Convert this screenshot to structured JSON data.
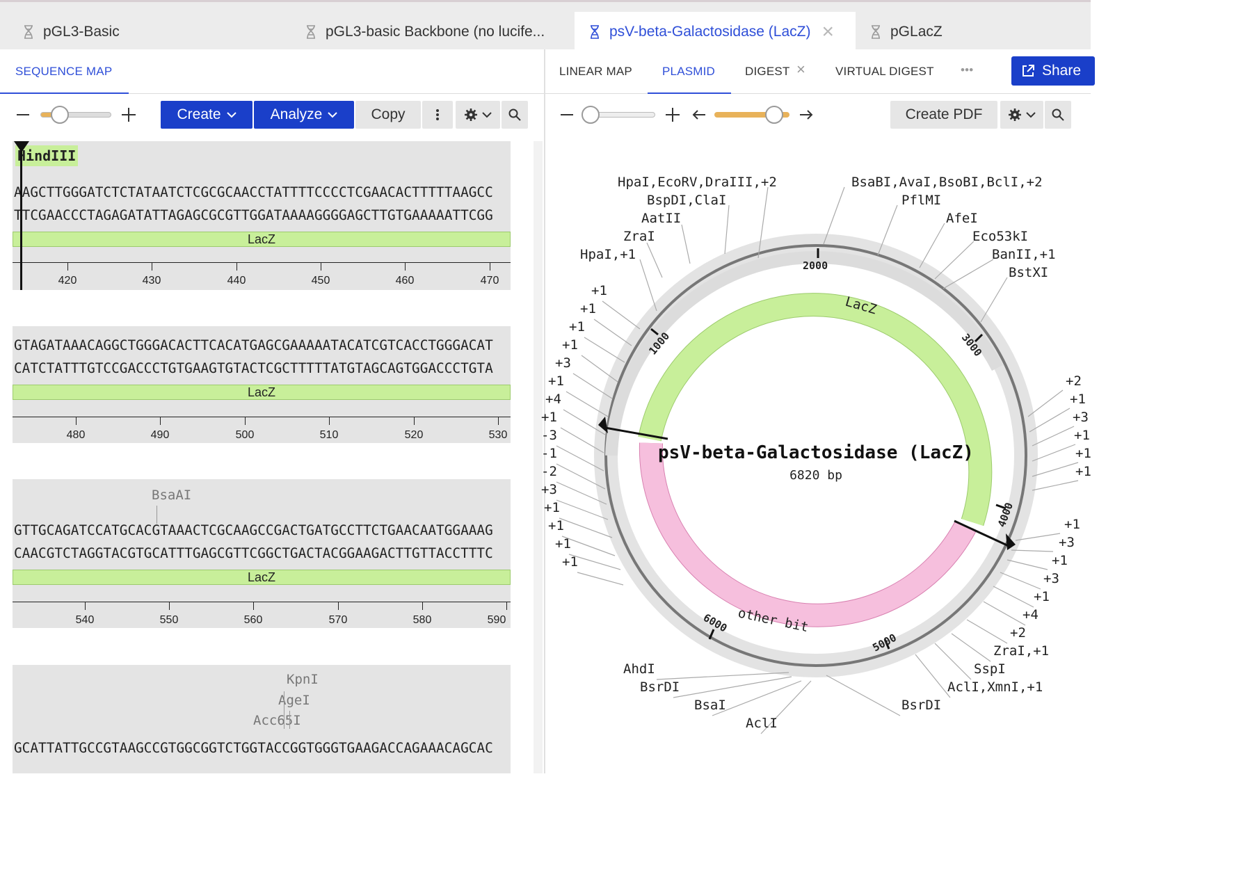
{
  "tabs": [
    {
      "label": "pGL3-Basic",
      "active": false
    },
    {
      "label": "pGL3-basic Backbone (no lucife...",
      "active": false
    },
    {
      "label": "psV-beta-Galactosidase (LacZ)",
      "active": true
    },
    {
      "label": "pGLacZ",
      "active": false
    }
  ],
  "left_panel": {
    "tab": "SEQUENCE MAP",
    "toolbar": {
      "zoom_out": "—",
      "zoom_in": "+",
      "create": "Create",
      "analyze": "Analyze",
      "copy": "Copy"
    },
    "blocks": [
      {
        "enzymes": [
          "HindIII"
        ],
        "top": "AAGCTTGGGATCTCTATAATCTCGCGCAACCTATTTTCCCCTCGAACACTTTTTAAGCC",
        "bottom": "TTCGAACCCTAGAGATATTAGAGCGCGTTGGATAAAAGGGGAGCTTGTGAAAAATTCGG",
        "feature": "LacZ",
        "ticks": [
          "420",
          "430",
          "440",
          "450",
          "460",
          "470"
        ]
      },
      {
        "enzymes": [],
        "top": "GTAGATAAACAGGCTGGGACACTTCACATGAGCGAAAAATACATCGTCACCTGGGACAT",
        "bottom": "CATCTATTTGTCCGACCCTGTGAAGTGTACTCGCTTTTTATGTAGCAGTGGACCCTGTA",
        "feature": "LacZ",
        "ticks": [
          "480",
          "490",
          "500",
          "510",
          "520",
          "530"
        ]
      },
      {
        "enzymes": [
          "BsaAI"
        ],
        "top": "GTTGCAGATCCATGCACGTAAACTCGCAAGCCGACTGATGCCTTCTGAACAATGGAAAG",
        "bottom": "CAACGTCTAGGTACGTGCATTTGAGCGTTCGGCTGACTACGGAAGACTTGTTACCTTTC",
        "feature": "LacZ",
        "ticks": [
          "540",
          "550",
          "560",
          "570",
          "580",
          "590"
        ]
      },
      {
        "enzymes": [
          "KpnI",
          "AgeI",
          "Acc65I"
        ],
        "top": "GCATTATTGCCGTAAGCCGTGGCGGTCTGGTACCGGTGGGTGAAGACCAGAAACAGCAC"
      }
    ]
  },
  "right_panel": {
    "tabs": [
      "LINEAR MAP",
      "PLASMID",
      "DIGEST",
      "VIRTUAL DIGEST"
    ],
    "active_tab": "PLASMID",
    "more": "•••",
    "share": "Share",
    "create_pdf": "Create PDF",
    "plasmid": {
      "name": "psV-beta-Galactosidase (LacZ)",
      "length": "6820 bp",
      "features": [
        "LacZ",
        "other bit"
      ],
      "ticks": [
        "1000",
        "2000",
        "3000",
        "4000",
        "5000",
        "6000"
      ],
      "labels_top": [
        "HpaI,EcoRV,DraIII,+2",
        "BspDI,ClaI",
        "AatII",
        "ZraI",
        "HpaI,+1",
        "BsaBI,AvaI,BsoBI,BclI,+2",
        "PflMI",
        "AfeI",
        "Eco53kI",
        "BanII,+1",
        "BstXI"
      ],
      "labels_left": [
        "+1",
        "+1",
        "+1",
        "+1",
        "+3",
        "+1",
        "+4",
        "+1",
        "-3",
        "-1",
        "-2",
        "+3",
        "+1",
        "+1",
        "+1",
        "+1"
      ],
      "labels_right": [
        "+2",
        "+1",
        "+3",
        "+1",
        "+1",
        "+1",
        "+1",
        "+3",
        "+1",
        "+3",
        "+1",
        "+4",
        "+2",
        "ZraI,+1",
        "SspI",
        "AclI,XmnI,+1",
        "BsrDI"
      ],
      "labels_bottom": [
        "AhdI",
        "BsrDI",
        "BsaI",
        "AclI"
      ]
    }
  },
  "colors": {
    "accent": "#2f4fd8",
    "button_blue": "#1a3fc9",
    "feature_green": "#c8ef9a",
    "feature_pink": "#f6bfdd",
    "slider_orange": "#e8b25a"
  }
}
